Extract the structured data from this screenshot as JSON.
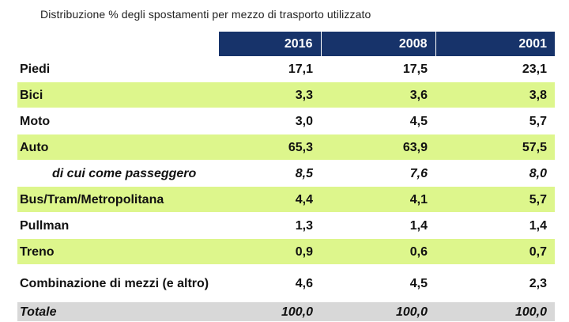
{
  "title": "Distribuzione % degli spostamenti per mezzo di trasporto utilizzato",
  "headers": [
    "2016",
    "2008",
    "2001"
  ],
  "rows": [
    {
      "label": "Piedi",
      "v": [
        "17,1",
        "17,5",
        "23,1"
      ]
    },
    {
      "label": "Bici",
      "v": [
        "3,3",
        "3,6",
        "3,8"
      ]
    },
    {
      "label": "Moto",
      "v": [
        "3,0",
        "4,5",
        "5,7"
      ]
    },
    {
      "label": "Auto",
      "v": [
        "65,3",
        "63,9",
        "57,5"
      ]
    },
    {
      "label": "di cui come passeggero",
      "v": [
        "8,5",
        "7,6",
        "8,0"
      ]
    },
    {
      "label": "Bus/Tram/Metropolitana",
      "v": [
        "4,4",
        "4,1",
        "5,7"
      ]
    },
    {
      "label": "Pullman",
      "v": [
        "1,3",
        "1,4",
        "1,4"
      ]
    },
    {
      "label": "Treno",
      "v": [
        "0,9",
        "0,6",
        "0,7"
      ]
    },
    {
      "label": "Combinazione di mezzi (e altro)",
      "v": [
        "4,6",
        "4,5",
        "2,3"
      ]
    },
    {
      "label": "Totale",
      "v": [
        "100,0",
        "100,0",
        "100,0"
      ]
    }
  ]
}
